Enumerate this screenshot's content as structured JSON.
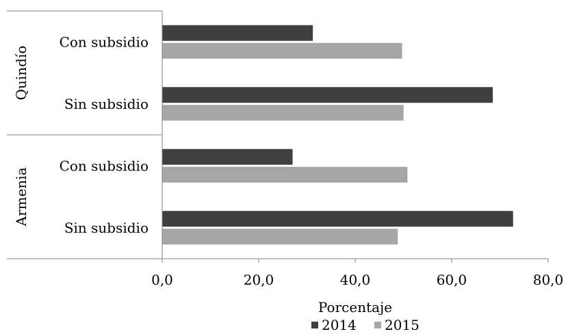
{
  "chart_data": {
    "type": "bar",
    "orientation": "horizontal",
    "xlabel": "Porcentaje",
    "xlim": [
      0,
      80
    ],
    "xticks": [
      "0,0",
      "20,0",
      "40,0",
      "60,0",
      "80,0"
    ],
    "grid": false,
    "legend_position": "bottom",
    "groups": [
      {
        "name": "Quindío",
        "categories": [
          "Con subsidio",
          "Sin subsidio"
        ]
      },
      {
        "name": "Armenia",
        "categories": [
          "Con subsidio",
          "Sin subsidio"
        ]
      }
    ],
    "series": [
      {
        "name": "2014",
        "color": "#404040",
        "values": [
          31.3,
          68.6,
          27.1,
          72.8
        ]
      },
      {
        "name": "2015",
        "color": "#a6a6a6",
        "values": [
          49.8,
          50.1,
          50.9,
          48.9
        ]
      }
    ]
  }
}
